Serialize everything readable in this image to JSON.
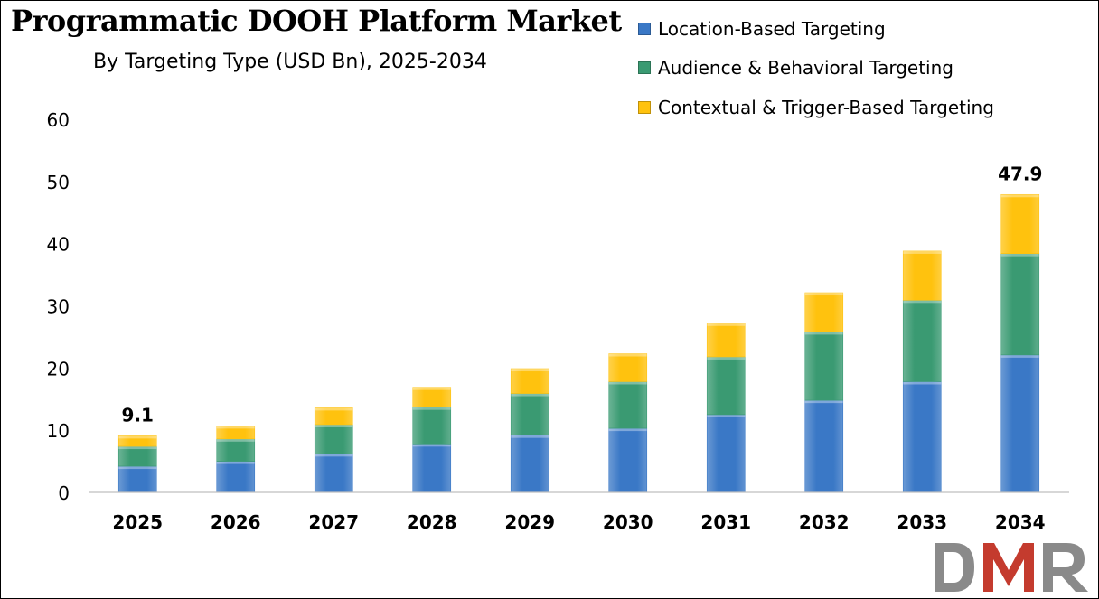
{
  "chart_data": {
    "type": "bar",
    "stacked": true,
    "title": "Programmatic DOOH Platform Market",
    "subtitle": "By Targeting Type (USD Bn), 2025-2034",
    "xlabel": "",
    "ylabel": "",
    "ylim": [
      0,
      60
    ],
    "yticks": [
      "0",
      "10",
      "20",
      "30",
      "40",
      "50",
      "60"
    ],
    "grid": false,
    "legend_position": "top-right",
    "categories": [
      "2025",
      "2026",
      "2027",
      "2028",
      "2029",
      "2030",
      "2031",
      "2032",
      "2033",
      "2034"
    ],
    "series": [
      {
        "name": "Location-Based Targeting",
        "color": "#3a78c6",
        "values": [
          4.2,
          5.0,
          6.2,
          7.8,
          9.2,
          10.3,
          12.5,
          14.8,
          17.8,
          22.1
        ]
      },
      {
        "name": "Audience & Behavioral Targeting",
        "color": "#3a9a72",
        "values": [
          3.2,
          3.6,
          4.7,
          5.9,
          6.7,
          7.5,
          9.3,
          11.0,
          13.1,
          16.3
        ]
      },
      {
        "name": "Contextual & Trigger-Based Targeting",
        "color": "#ffc20e",
        "values": [
          1.7,
          2.1,
          2.7,
          3.2,
          4.0,
          4.5,
          5.4,
          6.3,
          7.9,
          9.5
        ]
      }
    ],
    "data_labels": [
      {
        "category": "2025",
        "text": "9.1"
      },
      {
        "category": "2034",
        "text": "47.9"
      }
    ]
  },
  "logo": {
    "text": "DMR",
    "colors": [
      "#8a8a8a",
      "#c43b2e",
      "#8a8a8a"
    ]
  }
}
